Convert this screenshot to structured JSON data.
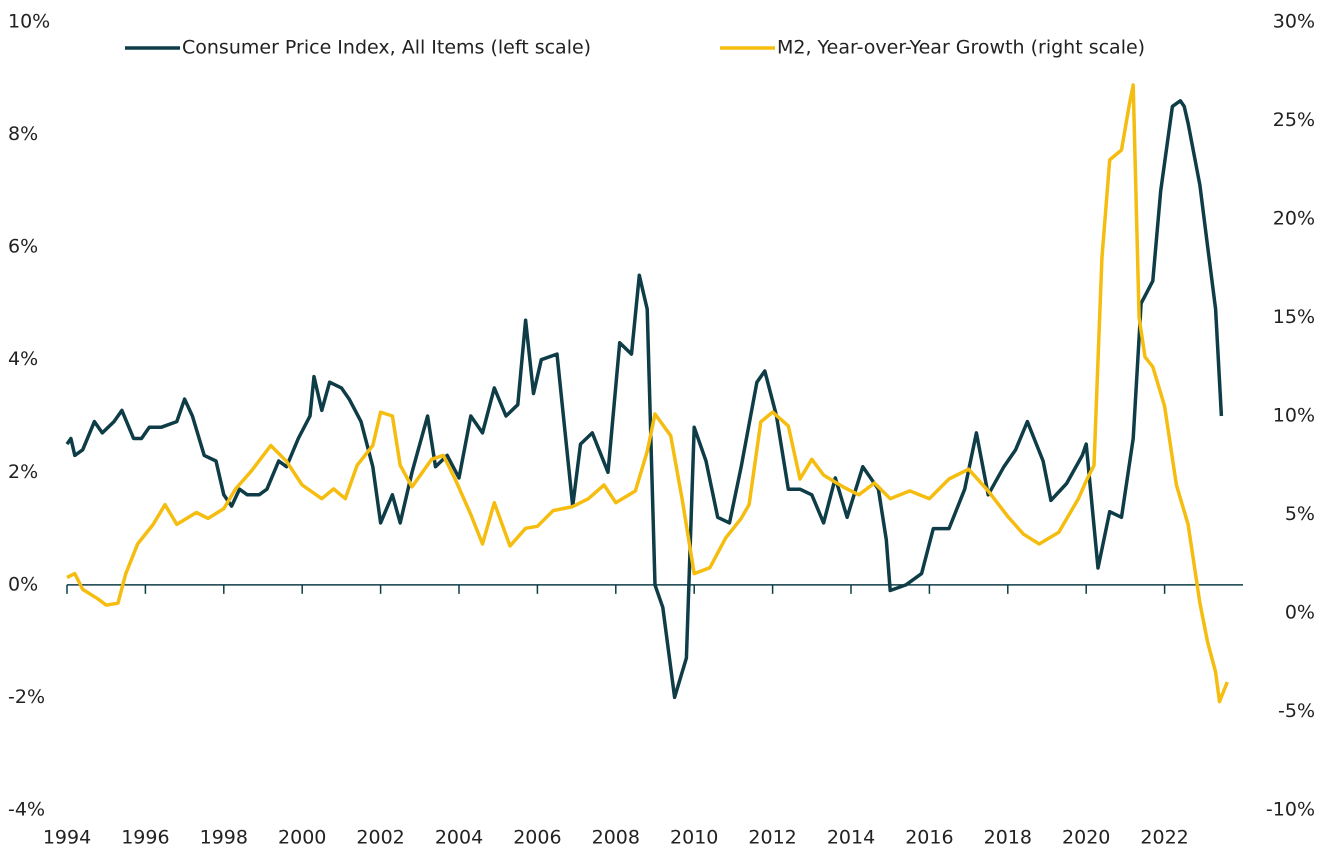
{
  "chart_data": {
    "type": "line",
    "legend": "top",
    "xlim": [
      1994,
      2024
    ],
    "xticks": [
      1994,
      1996,
      1998,
      2000,
      2002,
      2004,
      2006,
      2008,
      2010,
      2012,
      2014,
      2016,
      2018,
      2020,
      2022
    ],
    "ylim": [
      -4,
      10
    ],
    "yticks": [
      {
        "value": -4,
        "label": "-4%"
      },
      {
        "value": -2,
        "label": "-2%"
      },
      {
        "value": 0,
        "label": "0%"
      },
      {
        "value": 2,
        "label": "2%"
      },
      {
        "value": 4,
        "label": "4%"
      },
      {
        "value": 6,
        "label": "6%"
      },
      {
        "value": 8,
        "label": "8%"
      },
      {
        "value": 10,
        "label": "10%"
      }
    ],
    "y2lim": [
      -10,
      30
    ],
    "y2ticks": [
      {
        "value": -10,
        "label": "-10%"
      },
      {
        "value": -5,
        "label": "-5%"
      },
      {
        "value": 0,
        "label": "0%"
      },
      {
        "value": 5,
        "label": "5%"
      },
      {
        "value": 10,
        "label": "10%"
      },
      {
        "value": 15,
        "label": "15%"
      },
      {
        "value": 20,
        "label": "20%"
      },
      {
        "value": 25,
        "label": "25%"
      },
      {
        "value": 30,
        "label": "30%"
      }
    ],
    "series": [
      {
        "name": "Consumer Price Index, All Items (left scale)",
        "color": "#0e3d47",
        "axis": "y",
        "x": [
          1994.0,
          1994.1,
          1994.2,
          1994.4,
          1994.7,
          1994.9,
          1995.2,
          1995.4,
          1995.7,
          1995.9,
          1996.1,
          1996.4,
          1996.8,
          1997.0,
          1997.2,
          1997.5,
          1997.8,
          1998.0,
          1998.2,
          1998.4,
          1998.6,
          1998.9,
          1999.1,
          1999.4,
          1999.6,
          1999.9,
          2000.2,
          2000.3,
          2000.5,
          2000.7,
          2001.0,
          2001.2,
          2001.5,
          2001.8,
          2002.0,
          2002.3,
          2002.5,
          2002.8,
          2003.2,
          2003.4,
          2003.7,
          2004.0,
          2004.3,
          2004.6,
          2004.9,
          2005.2,
          2005.5,
          2005.7,
          2005.9,
          2006.1,
          2006.5,
          2006.9,
          2007.1,
          2007.4,
          2007.8,
          2008.1,
          2008.4,
          2008.6,
          2008.8,
          2009.0,
          2009.2,
          2009.5,
          2009.8,
          2010.0,
          2010.3,
          2010.6,
          2010.9,
          2011.2,
          2011.6,
          2011.8,
          2012.1,
          2012.4,
          2012.7,
          2013.0,
          2013.3,
          2013.6,
          2013.9,
          2014.3,
          2014.7,
          2014.9,
          2015.0,
          2015.4,
          2015.8,
          2016.1,
          2016.5,
          2016.9,
          2017.2,
          2017.5,
          2017.9,
          2018.2,
          2018.5,
          2018.9,
          2019.1,
          2019.5,
          2019.9,
          2020.0,
          2020.3,
          2020.6,
          2020.9,
          2021.2,
          2021.4,
          2021.7,
          2021.9,
          2022.2,
          2022.4,
          2022.5,
          2022.6,
          2022.9,
          2023.1,
          2023.3,
          2023.45
        ],
        "values": [
          2.5,
          2.6,
          2.3,
          2.4,
          2.9,
          2.7,
          2.9,
          3.1,
          2.6,
          2.6,
          2.8,
          2.8,
          2.9,
          3.3,
          3.0,
          2.3,
          2.2,
          1.6,
          1.4,
          1.7,
          1.6,
          1.6,
          1.7,
          2.2,
          2.1,
          2.6,
          3.0,
          3.7,
          3.1,
          3.6,
          3.5,
          3.3,
          2.9,
          2.1,
          1.1,
          1.6,
          1.1,
          2.0,
          3.0,
          2.1,
          2.3,
          1.9,
          3.0,
          2.7,
          3.5,
          3.0,
          3.2,
          4.7,
          3.4,
          4.0,
          4.1,
          1.4,
          2.5,
          2.7,
          2.0,
          4.3,
          4.1,
          5.5,
          4.9,
          0.0,
          -0.4,
          -2.0,
          -1.3,
          2.8,
          2.2,
          1.2,
          1.1,
          2.1,
          3.6,
          3.8,
          3.0,
          1.7,
          1.7,
          1.6,
          1.1,
          1.9,
          1.2,
          2.1,
          1.7,
          0.8,
          -0.1,
          0.0,
          0.2,
          1.0,
          1.0,
          1.7,
          2.7,
          1.6,
          2.1,
          2.4,
          2.9,
          2.2,
          1.5,
          1.8,
          2.3,
          2.5,
          0.3,
          1.3,
          1.2,
          2.6,
          5.0,
          5.4,
          7.0,
          8.5,
          8.6,
          8.5,
          8.2,
          7.1,
          6.0,
          4.9,
          3.0
        ]
      },
      {
        "name": "M2, Year-over-Year Growth (right scale)",
        "color": "#f5bd0f",
        "axis": "y2",
        "x": [
          1994.0,
          1994.2,
          1994.4,
          1994.8,
          1995.0,
          1995.3,
          1995.5,
          1995.8,
          1996.2,
          1996.5,
          1996.8,
          1997.3,
          1997.6,
          1998.0,
          1998.3,
          1998.7,
          1999.2,
          1999.6,
          2000.0,
          2000.5,
          2000.8,
          2001.1,
          2001.4,
          2001.8,
          2002.0,
          2002.3,
          2002.5,
          2002.8,
          2003.3,
          2003.6,
          2003.9,
          2004.3,
          2004.6,
          2004.9,
          2005.3,
          2005.7,
          2006.0,
          2006.4,
          2006.9,
          2007.3,
          2007.7,
          2008.0,
          2008.5,
          2008.8,
          2009.0,
          2009.4,
          2009.7,
          2010.0,
          2010.4,
          2010.8,
          2011.2,
          2011.4,
          2011.7,
          2012.0,
          2012.4,
          2012.7,
          2013.0,
          2013.3,
          2013.8,
          2014.2,
          2014.6,
          2015.0,
          2015.5,
          2016.0,
          2016.5,
          2017.0,
          2017.5,
          2018.0,
          2018.4,
          2018.8,
          2019.3,
          2019.8,
          2020.0,
          2020.2,
          2020.4,
          2020.6,
          2020.9,
          2021.1,
          2021.2,
          2021.35,
          2021.5,
          2021.7,
          2022.0,
          2022.3,
          2022.6,
          2022.9,
          2023.1,
          2023.3,
          2023.4,
          2023.6
        ],
        "values": [
          1.8,
          2.0,
          1.2,
          0.7,
          0.4,
          0.5,
          2.0,
          3.5,
          4.5,
          5.5,
          4.5,
          5.1,
          4.8,
          5.3,
          6.3,
          7.2,
          8.5,
          7.7,
          6.5,
          5.8,
          6.3,
          5.8,
          7.5,
          8.5,
          10.2,
          10.0,
          7.5,
          6.4,
          7.8,
          8.0,
          6.8,
          5.0,
          3.5,
          5.6,
          3.4,
          4.3,
          4.4,
          5.2,
          5.4,
          5.8,
          6.5,
          5.6,
          6.2,
          8.2,
          10.1,
          9.0,
          5.7,
          2.0,
          2.3,
          3.8,
          4.8,
          5.5,
          9.7,
          10.2,
          9.5,
          6.8,
          7.8,
          7.0,
          6.4,
          6.0,
          6.6,
          5.8,
          6.2,
          5.8,
          6.8,
          7.3,
          6.2,
          4.9,
          4.0,
          3.5,
          4.1,
          5.8,
          6.7,
          7.5,
          18.0,
          23.0,
          23.5,
          25.8,
          26.8,
          15.0,
          13.0,
          12.5,
          10.5,
          6.5,
          4.5,
          0.5,
          -1.5,
          -3.0,
          -4.5,
          -3.5
        ]
      }
    ]
  }
}
